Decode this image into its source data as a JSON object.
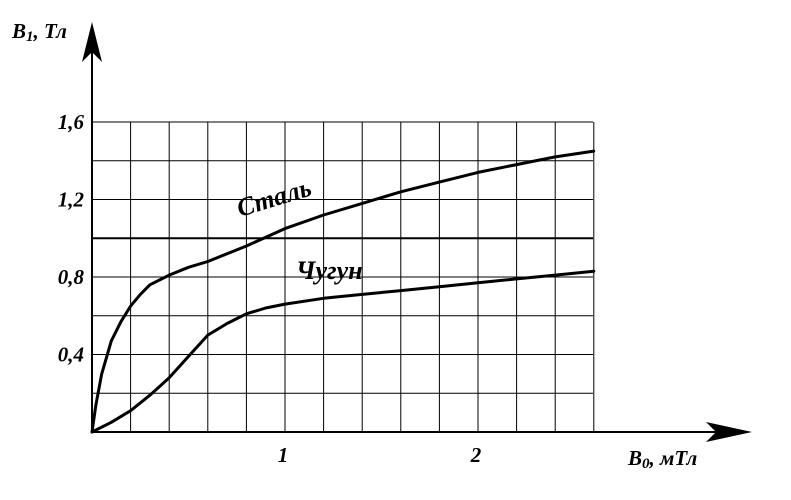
{
  "chart_data": {
    "type": "line",
    "x_axis": {
      "label_main": "B",
      "label_sub": "0",
      "label_rest": ", мТл",
      "ticks": [
        "1",
        "2"
      ],
      "range": [
        0,
        2.6
      ]
    },
    "y_axis": {
      "label_main": "B",
      "label_sub": "1",
      "label_rest": ", Тл",
      "ticks": [
        "0,4",
        "0,8",
        "1,2",
        "1,6"
      ],
      "range": [
        0,
        1.6
      ]
    },
    "grid": true,
    "series": [
      {
        "name": "Сталь",
        "x": [
          0,
          0.02,
          0.05,
          0.1,
          0.15,
          0.2,
          0.25,
          0.3,
          0.4,
          0.5,
          0.6,
          0.8,
          1.0,
          1.2,
          1.4,
          1.6,
          1.8,
          2.0,
          2.2,
          2.4,
          2.6
        ],
        "y": [
          0,
          0.14,
          0.3,
          0.47,
          0.57,
          0.65,
          0.71,
          0.76,
          0.81,
          0.85,
          0.88,
          0.96,
          1.05,
          1.12,
          1.18,
          1.24,
          1.29,
          1.34,
          1.38,
          1.42,
          1.45
        ]
      },
      {
        "name": "Чугун",
        "x": [
          0,
          0.1,
          0.2,
          0.3,
          0.4,
          0.5,
          0.6,
          0.7,
          0.8,
          0.9,
          1.0,
          1.2,
          1.4,
          1.6,
          1.8,
          2.0,
          2.2,
          2.4,
          2.6
        ],
        "y": [
          0,
          0.05,
          0.11,
          0.19,
          0.28,
          0.39,
          0.5,
          0.56,
          0.61,
          0.64,
          0.66,
          0.69,
          0.71,
          0.73,
          0.75,
          0.77,
          0.79,
          0.81,
          0.83
        ]
      }
    ],
    "reference_line": {
      "y": 1.0
    }
  }
}
